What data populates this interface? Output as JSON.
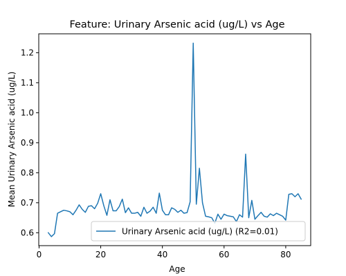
{
  "chart_data": {
    "type": "line",
    "title": "Feature: Urinary Arsenic acid (ug/L) vs Age",
    "xlabel": "Age",
    "ylabel": "Mean Urinary Arsenic acid (ug/L)",
    "xlim": [
      -0.1,
      88.1
    ],
    "ylim": [
      0.557,
      1.263
    ],
    "xticks": [
      0,
      20,
      40,
      60,
      80
    ],
    "yticks": [
      0.6,
      0.7,
      0.8,
      0.9,
      1.0,
      1.1,
      1.2
    ],
    "xtick_labels": [
      "0",
      "20",
      "40",
      "60",
      "80"
    ],
    "ytick_labels": [
      "0.6",
      "0.7",
      "0.8",
      "0.9",
      "1.0",
      "1.1",
      "1.2"
    ],
    "grid": false,
    "legend_position": "lower-right",
    "series": [
      {
        "name": "Urinary Arsenic acid (ug/L) (R2=0.01)",
        "color": "#1f77b4",
        "x": [
          3,
          4,
          5,
          6,
          7,
          8,
          9,
          10,
          11,
          12,
          13,
          14,
          15,
          16,
          17,
          18,
          19,
          20,
          21,
          22,
          23,
          24,
          25,
          26,
          27,
          28,
          29,
          30,
          31,
          32,
          33,
          34,
          35,
          36,
          37,
          38,
          39,
          40,
          41,
          42,
          43,
          44,
          45,
          46,
          47,
          48,
          49,
          50,
          51,
          52,
          53,
          54,
          55,
          56,
          57,
          58,
          59,
          60,
          61,
          62,
          63,
          64,
          65,
          66,
          67,
          68,
          69,
          70,
          71,
          72,
          73,
          74,
          75,
          76,
          77,
          78,
          79,
          80,
          81,
          82,
          83,
          84,
          85
        ],
        "y": [
          0.6,
          0.587,
          0.597,
          0.665,
          0.67,
          0.675,
          0.673,
          0.67,
          0.66,
          0.675,
          0.693,
          0.678,
          0.668,
          0.688,
          0.69,
          0.68,
          0.698,
          0.73,
          0.69,
          0.658,
          0.71,
          0.673,
          0.673,
          0.687,
          0.712,
          0.667,
          0.683,
          0.665,
          0.665,
          0.668,
          0.655,
          0.685,
          0.665,
          0.672,
          0.685,
          0.665,
          0.732,
          0.675,
          0.66,
          0.66,
          0.683,
          0.678,
          0.668,
          0.675,
          0.665,
          0.667,
          0.703,
          1.232,
          0.695,
          0.815,
          0.7,
          0.655,
          0.653,
          0.65,
          0.632,
          0.662,
          0.645,
          0.662,
          0.657,
          0.655,
          0.653,
          0.637,
          0.66,
          0.652,
          0.862,
          0.65,
          0.708,
          0.645,
          0.657,
          0.668,
          0.655,
          0.652,
          0.663,
          0.657,
          0.665,
          0.66,
          0.655,
          0.642,
          0.728,
          0.73,
          0.72,
          0.73,
          0.712
        ]
      }
    ]
  }
}
